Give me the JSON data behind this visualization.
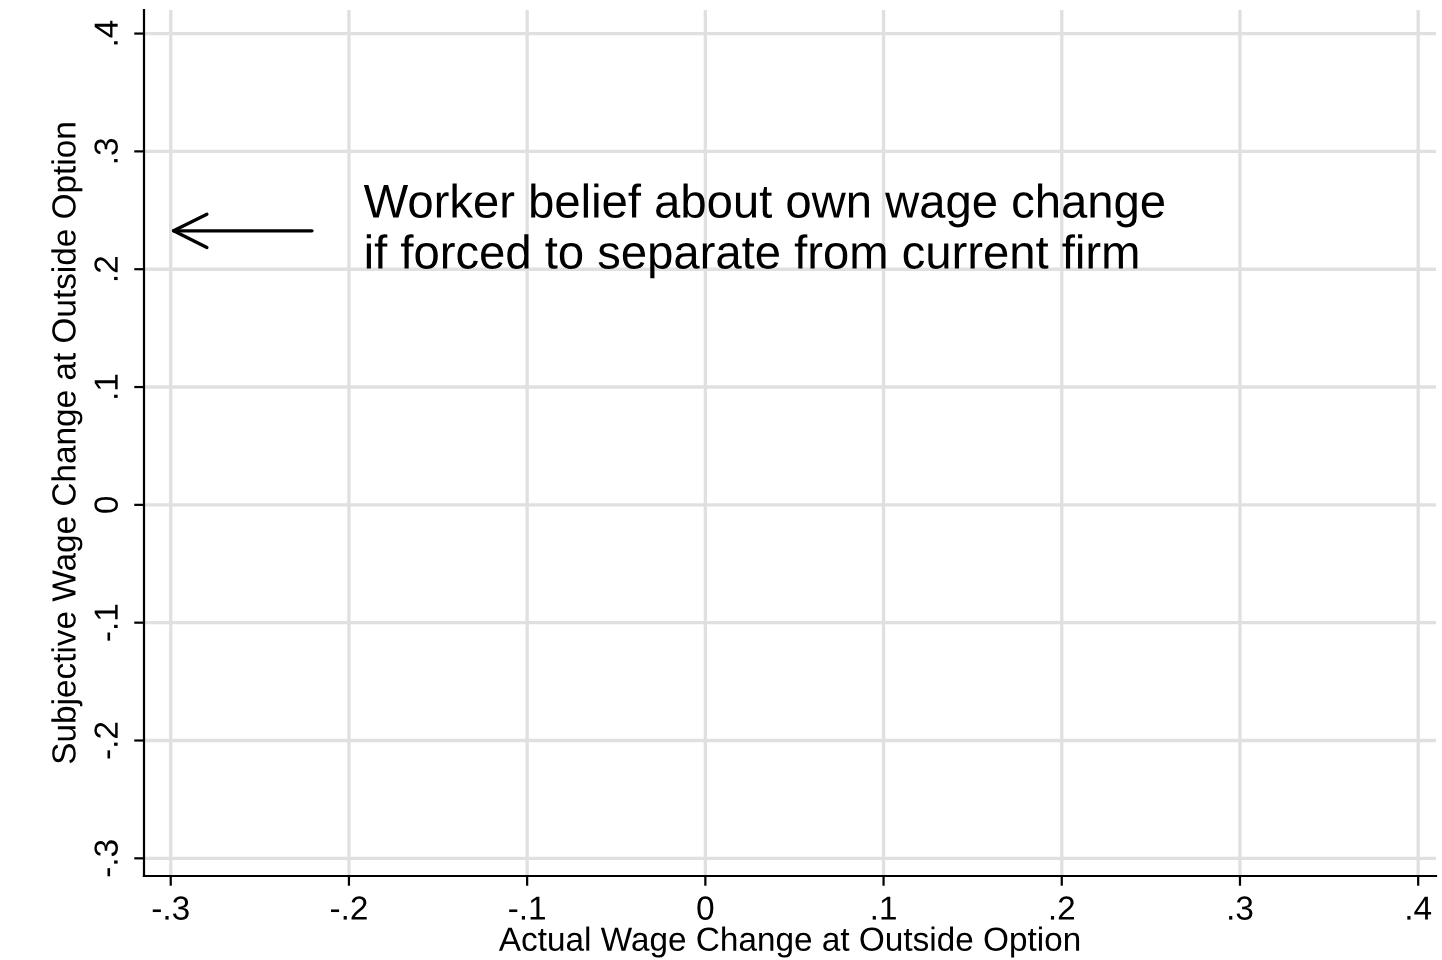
{
  "chart_data": {
    "type": "scatter",
    "xlabel": "Actual Wage Change at Outside Option",
    "ylabel": "Subjective Wage Change at Outside Option",
    "grid": true,
    "xlim": [
      -0.315,
      0.41
    ],
    "ylim": [
      -0.315,
      0.42
    ],
    "xticks": [
      {
        "value": -0.3,
        "label": "-.3"
      },
      {
        "value": -0.2,
        "label": "-.2"
      },
      {
        "value": -0.1,
        "label": "-.1"
      },
      0,
      {
        "value": 0.1,
        "label": ".1"
      },
      {
        "value": 0.2,
        "label": ".2"
      },
      {
        "value": 0.3,
        "label": ".3"
      },
      {
        "value": 0.4,
        "label": ".4"
      }
    ],
    "yticks": [
      {
        "value": -0.3,
        "label": "-.3"
      },
      {
        "value": -0.2,
        "label": "-.2"
      },
      {
        "value": -0.1,
        "label": "-.1"
      },
      0,
      {
        "value": 0.1,
        "label": ".1"
      },
      {
        "value": 0.2,
        "label": ".2"
      },
      {
        "value": 0.3,
        "label": ".3"
      },
      {
        "value": 0.4,
        "label": ".4"
      }
    ],
    "annotations": [
      "Worker belief about own wage change\nif forced to separate from current firm"
    ]
  }
}
